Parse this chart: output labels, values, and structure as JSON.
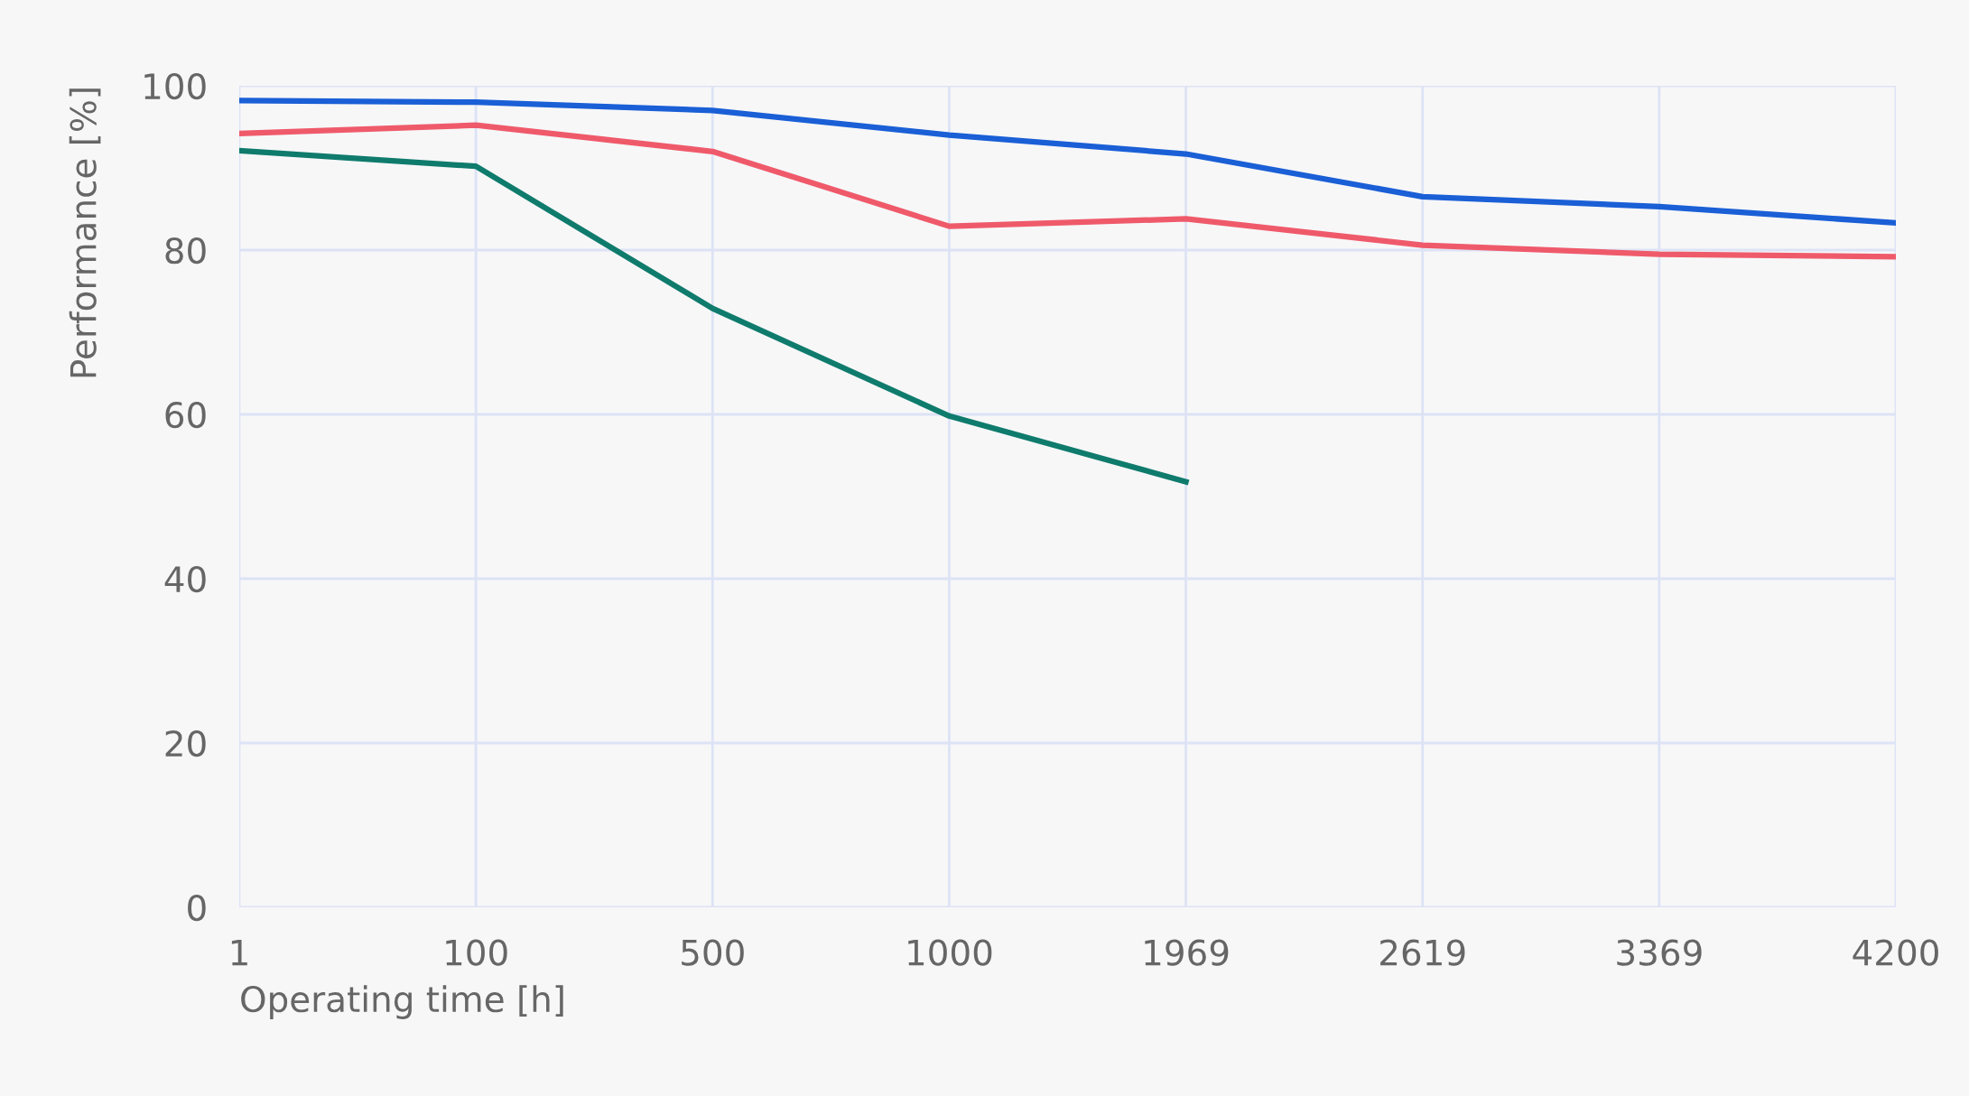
{
  "chart_data": {
    "type": "line",
    "xlabel": "Operating time [h]",
    "ylabel": "Performance [%]",
    "categories": [
      "1",
      "100",
      "500",
      "1000",
      "1969",
      "2619",
      "3369",
      "4200"
    ],
    "series": [
      {
        "color": "#1a5fd6",
        "values": [
          98.2,
          98,
          97,
          94,
          91.7,
          86.5,
          85.3,
          83.3
        ]
      },
      {
        "color": "#ef5a6a",
        "values": [
          94.2,
          95.2,
          92,
          82.9,
          83.8,
          80.6,
          79.5,
          79.2
        ]
      },
      {
        "color": "#0f7b6c",
        "values": [
          92.1,
          90.2,
          72.9,
          59.8,
          51.8,
          null,
          null,
          null
        ]
      }
    ],
    "ylim": [
      0,
      100
    ],
    "yticks": [
      0,
      20,
      40,
      60,
      80,
      100
    ],
    "grid": true,
    "marker": "none",
    "line_style": "solid"
  }
}
